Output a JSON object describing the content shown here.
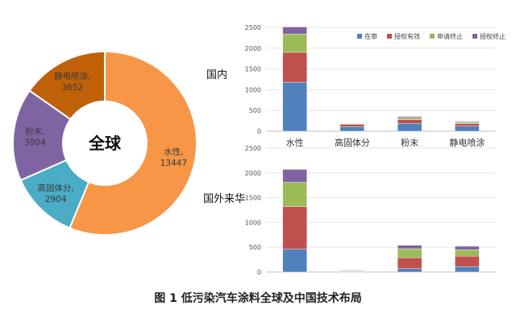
{
  "figure_caption": "图 1 低污染汽车涂料全球及中国技术布局",
  "chart_data": [
    {
      "type": "pie",
      "title": "全球",
      "center_label": "全球",
      "slices": [
        {
          "name": "水性",
          "value": 13447,
          "color": "#f79646"
        },
        {
          "name": "高固体分",
          "value": 2904,
          "color": "#4bacc6"
        },
        {
          "name": "粉末",
          "value": 3904,
          "color": "#8064a2"
        },
        {
          "name": "静电喷涂",
          "value": 3652,
          "color": "#c0610a"
        }
      ],
      "labels": [
        {
          "name": "水性,",
          "value": "13447"
        },
        {
          "name": "高固体分,",
          "value": "2904"
        },
        {
          "name": "粉末,",
          "value": "3904"
        },
        {
          "name": "静电喷涂,",
          "value": "3652"
        }
      ]
    },
    {
      "type": "bar",
      "stacked": true,
      "label": "国内",
      "categories": [
        "水性",
        "高固体分",
        "粉末",
        "静电喷涂"
      ],
      "ylim": [
        0,
        2500
      ],
      "yticks": [
        "0",
        "500",
        "1000",
        "1500",
        "2000",
        "2500"
      ],
      "series": [
        {
          "name": "在审",
          "color": "#4f81bd",
          "values": [
            1180,
            110,
            190,
            120
          ]
        },
        {
          "name": "授权有效",
          "color": "#c0504d",
          "values": [
            720,
            55,
            90,
            60
          ]
        },
        {
          "name": "申请终止",
          "color": "#9bbb59",
          "values": [
            440,
            15,
            45,
            30
          ]
        },
        {
          "name": "授权终止",
          "color": "#8064a2",
          "values": [
            170,
            10,
            25,
            20
          ]
        }
      ],
      "legend_position": "top-right"
    },
    {
      "type": "bar",
      "stacked": true,
      "label": "国外来华",
      "categories": [
        "水性",
        "高固体分",
        "粉末",
        "静电喷涂"
      ],
      "ylim": [
        0,
        2500
      ],
      "yticks": [
        "0",
        "500",
        "1000",
        "1500",
        "2000",
        "2500"
      ],
      "series": [
        {
          "name": "在审",
          "color": "#4f81bd",
          "values": [
            460,
            10,
            70,
            110
          ]
        },
        {
          "name": "授权有效",
          "color": "#c0504d",
          "values": [
            860,
            10,
            220,
            210
          ]
        },
        {
          "name": "申请终止",
          "color": "#9bbb59",
          "values": [
            490,
            10,
            180,
            130
          ]
        },
        {
          "name": "授权终止",
          "color": "#8064a2",
          "values": [
            260,
            10,
            70,
            70
          ]
        }
      ]
    }
  ]
}
